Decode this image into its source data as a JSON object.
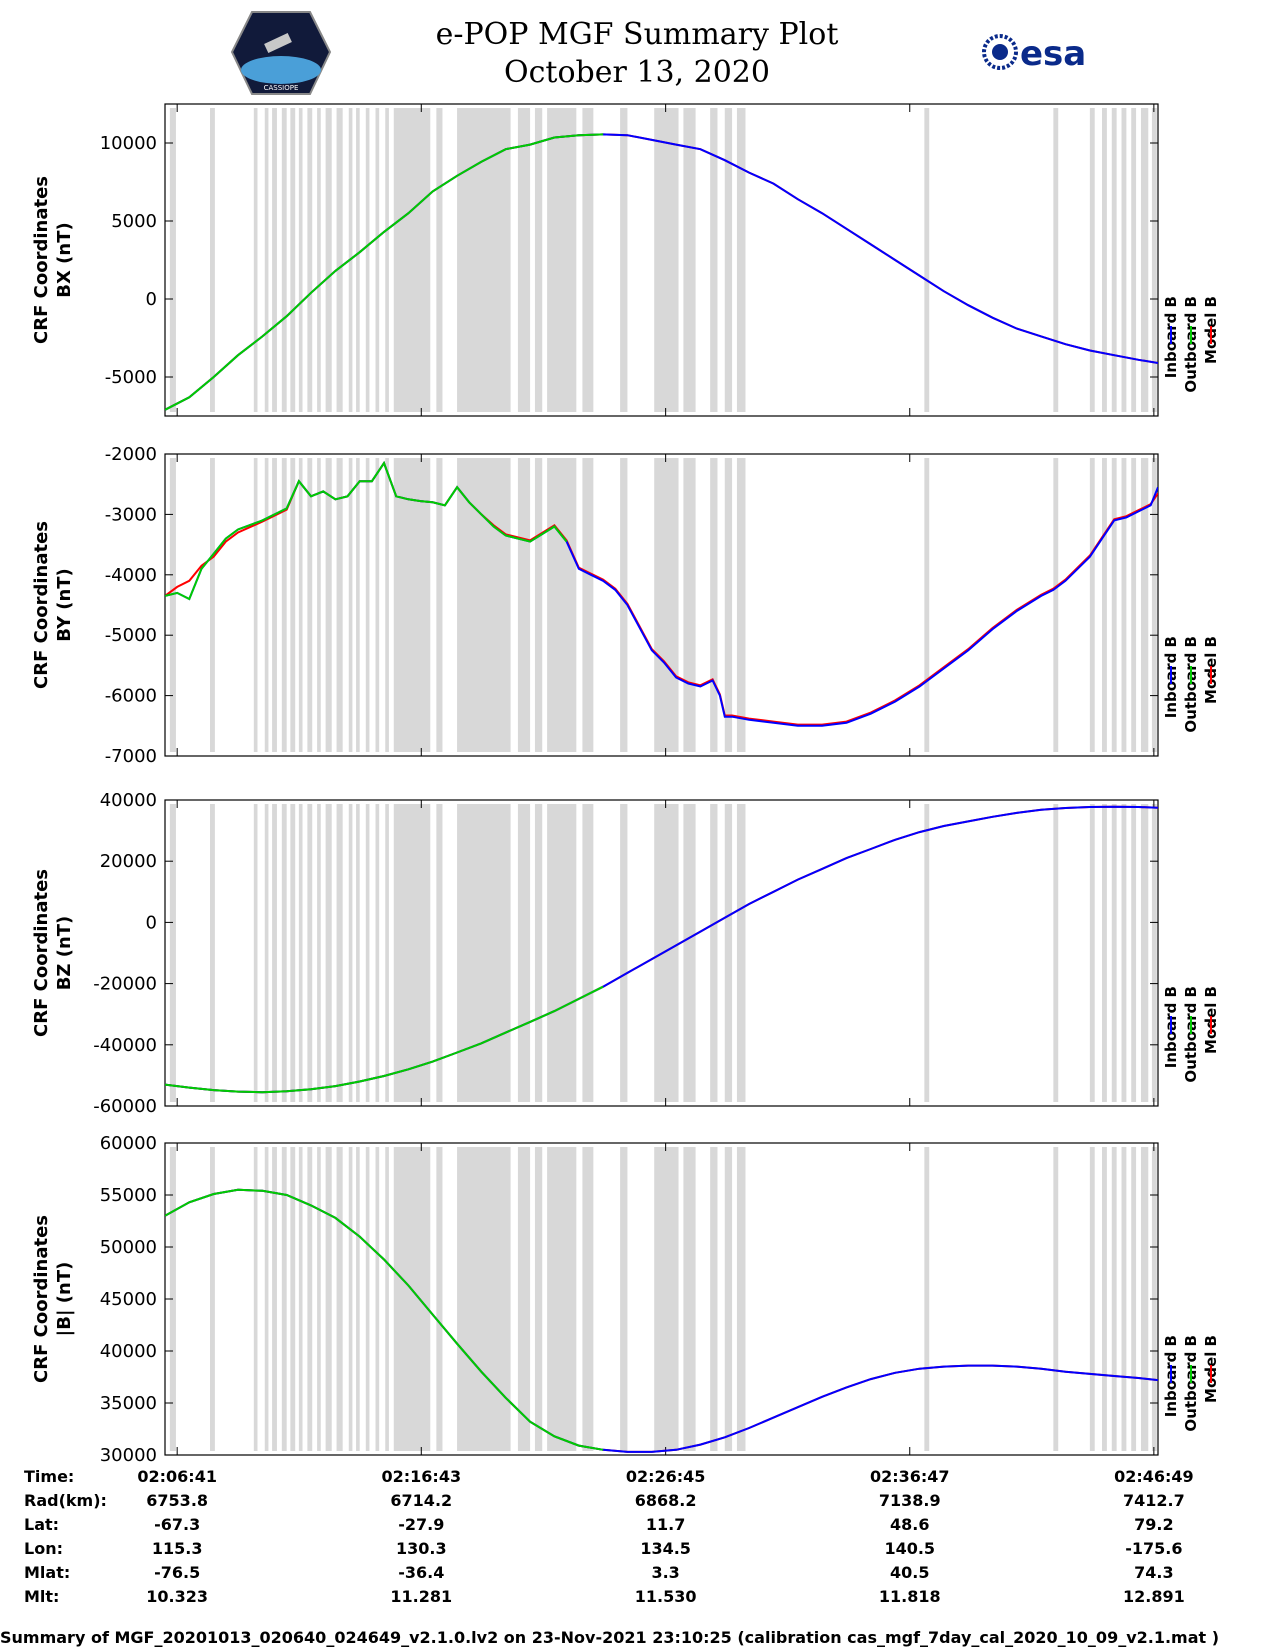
{
  "header": {
    "title_line1": "e-POP MGF Summary Plot",
    "title_line2": "October 13, 2020",
    "logo_left_text": "CASSIOPE",
    "logo_right_text": "esa"
  },
  "colors": {
    "inboard": "#0000ff",
    "outboard": "#00cc00",
    "model": "#ff0000",
    "shade": "#d8d8d8"
  },
  "legend": {
    "labels": [
      "Inboard B",
      "Outboard B",
      "Model B"
    ]
  },
  "x_axis": {
    "tick_labels": [
      "02:06:41",
      "02:16:43",
      "02:26:45",
      "02:36:47",
      "02:46:49"
    ],
    "tick_minutes": [
      0.5,
      10.53,
      20.57,
      30.6,
      40.63
    ],
    "xlim": [
      0,
      40.8
    ]
  },
  "shaded_intervals_min": [
    [
      0.2,
      0.45
    ],
    [
      1.85,
      2.05
    ],
    [
      3.65,
      3.8
    ],
    [
      4.1,
      4.25
    ],
    [
      4.4,
      4.6
    ],
    [
      4.8,
      5.0
    ],
    [
      5.15,
      5.35
    ],
    [
      5.5,
      5.65
    ],
    [
      5.85,
      6.05
    ],
    [
      6.25,
      6.4
    ],
    [
      6.6,
      6.85
    ],
    [
      7.05,
      7.3
    ],
    [
      7.55,
      7.7
    ],
    [
      7.85,
      8.0
    ],
    [
      8.25,
      8.4
    ],
    [
      8.65,
      8.8
    ],
    [
      9.05,
      9.2
    ],
    [
      9.4,
      10.9
    ],
    [
      11.15,
      11.4
    ],
    [
      12.0,
      14.2
    ],
    [
      14.5,
      15.0
    ],
    [
      15.2,
      15.5
    ],
    [
      15.7,
      16.9
    ],
    [
      17.15,
      17.6
    ],
    [
      18.7,
      19.0
    ],
    [
      20.1,
      21.1
    ],
    [
      21.3,
      21.8
    ],
    [
      22.4,
      22.7
    ],
    [
      23.0,
      23.3
    ],
    [
      23.5,
      23.85
    ],
    [
      31.2,
      31.4
    ],
    [
      36.5,
      36.7
    ],
    [
      38.0,
      38.2
    ],
    [
      38.5,
      38.7
    ],
    [
      38.9,
      39.1
    ],
    [
      39.3,
      39.5
    ],
    [
      39.7,
      39.9
    ],
    [
      40.1,
      40.4
    ],
    [
      40.55,
      40.75
    ]
  ],
  "chart_data": [
    {
      "type": "line",
      "name": "BX",
      "ylabel_line1": "CRF Coordinates",
      "ylabel_line2": "BX (nT)",
      "ylim": [
        -7500,
        12500
      ],
      "yticks": [
        10000,
        5000,
        0,
        -5000
      ],
      "ytick_labels": [
        "10000",
        "5000",
        "0",
        "-5000"
      ],
      "x_minutes": [
        0,
        1,
        2,
        3,
        4,
        5,
        6,
        7,
        8,
        9,
        10,
        11,
        12,
        13,
        14,
        15,
        16,
        17,
        18,
        19,
        20,
        21,
        22,
        23,
        24,
        25,
        26,
        27,
        28,
        29,
        30,
        31,
        32,
        33,
        34,
        35,
        36,
        37,
        38,
        39,
        40,
        40.8
      ],
      "outboard_until_minute": 18.8,
      "values": [
        -7100,
        -6300,
        -5000,
        -3600,
        -2400,
        -1100,
        400,
        1800,
        3000,
        4300,
        5500,
        6900,
        7900,
        8800,
        9600,
        9900,
        10350,
        10500,
        10550,
        10500,
        10200,
        9900,
        9600,
        8900,
        8100,
        7400,
        6400,
        5500,
        4500,
        3500,
        2500,
        1500,
        500,
        -400,
        -1200,
        -1900,
        -2400,
        -2900,
        -3300,
        -3600,
        -3900,
        -4100
      ],
      "model_values": [
        -7100,
        -6300,
        -5000,
        -3600,
        -2400,
        -1100,
        400,
        1800,
        3000,
        4300,
        5500,
        6900,
        7900,
        8800,
        9600,
        9900,
        10350,
        10500,
        10550,
        10500,
        10200,
        9900,
        9600,
        8900,
        8100,
        7400,
        6400,
        5500,
        4500,
        3500,
        2500,
        1500,
        500,
        -400,
        -1200,
        -1900,
        -2400,
        -2900,
        -3300,
        -3600,
        -3900,
        -4100
      ]
    },
    {
      "type": "line",
      "name": "BY",
      "ylabel_line1": "CRF Coordinates",
      "ylabel_line2": "BY (nT)",
      "ylim": [
        -7000,
        -2000
      ],
      "yticks": [
        -2000,
        -3000,
        -4000,
        -5000,
        -6000,
        -7000
      ],
      "ytick_labels": [
        "-2000",
        "-3000",
        "-4000",
        "-5000",
        "-6000",
        "-7000"
      ],
      "x_minutes": [
        0,
        0.5,
        1,
        1.5,
        2,
        2.5,
        3,
        4,
        5,
        5.5,
        6,
        6.5,
        7,
        7.5,
        8,
        8.5,
        9,
        9.5,
        10,
        10.5,
        11,
        11.5,
        12,
        12.5,
        13,
        13.5,
        14,
        15,
        16,
        16.5,
        17,
        17.5,
        18,
        18.5,
        19,
        20,
        20.5,
        21,
        21.5,
        22,
        22.5,
        22.8,
        23,
        23.3,
        24,
        25,
        26,
        27,
        28,
        29,
        30,
        31,
        32,
        33,
        34,
        35,
        36,
        36.5,
        37,
        38,
        39,
        39.5,
        40,
        40.5,
        40.8
      ],
      "outboard_until_minute": 16.9,
      "values": [
        -4350,
        -4300,
        -4400,
        -3900,
        -3650,
        -3400,
        -3250,
        -3100,
        -2900,
        -2450,
        -2700,
        -2620,
        -2750,
        -2700,
        -2450,
        -2450,
        -2150,
        -2700,
        -2750,
        -2780,
        -2800,
        -2850,
        -2550,
        -2800,
        -3000,
        -3200,
        -3350,
        -3450,
        -3200,
        -3450,
        -3900,
        -4000,
        -4100,
        -4250,
        -4500,
        -5250,
        -5450,
        -5700,
        -5800,
        -5850,
        -5750,
        -6000,
        -6350,
        -6350,
        -6400,
        -6450,
        -6500,
        -6500,
        -6450,
        -6300,
        -6100,
        -5850,
        -5550,
        -5250,
        -4900,
        -4600,
        -4350,
        -4250,
        -4100,
        -3700,
        -3100,
        -3050,
        -2950,
        -2850,
        -2550
      ],
      "model_values": [
        -4350,
        -4200,
        -4100,
        -3850,
        -3700,
        -3450,
        -3300,
        -3120,
        -2920,
        -2450,
        -2700,
        -2620,
        -2750,
        -2700,
        -2450,
        -2450,
        -2150,
        -2700,
        -2750,
        -2780,
        -2800,
        -2850,
        -2550,
        -2800,
        -3000,
        -3180,
        -3330,
        -3430,
        -3180,
        -3430,
        -3880,
        -3980,
        -4080,
        -4230,
        -4480,
        -5230,
        -5430,
        -5680,
        -5780,
        -5830,
        -5730,
        -5980,
        -6330,
        -6330,
        -6380,
        -6430,
        -6480,
        -6480,
        -6430,
        -6280,
        -6080,
        -5830,
        -5530,
        -5230,
        -4880,
        -4580,
        -4330,
        -4230,
        -4080,
        -3680,
        -3080,
        -3030,
        -2930,
        -2830,
        -2650
      ]
    },
    {
      "type": "line",
      "name": "BZ",
      "ylabel_line1": "CRF Coordinates",
      "ylabel_line2": "BZ (nT)",
      "ylim": [
        -60000,
        40000
      ],
      "yticks": [
        40000,
        20000,
        0,
        -20000,
        -40000,
        -60000
      ],
      "ytick_labels": [
        "40000",
        "20000",
        "0",
        "-20000",
        "-40000",
        "-60000"
      ],
      "x_minutes": [
        0,
        1,
        2,
        3,
        4,
        5,
        6,
        7,
        8,
        9,
        10,
        11,
        12,
        13,
        14,
        15,
        16,
        17,
        18,
        19,
        20,
        21,
        22,
        23,
        24,
        25,
        26,
        27,
        28,
        29,
        30,
        31,
        32,
        33,
        34,
        35,
        36,
        37,
        38,
        39,
        40,
        40.8
      ],
      "outboard_until_minute": 18.8,
      "values": [
        -53000,
        -54000,
        -54800,
        -55300,
        -55500,
        -55200,
        -54500,
        -53500,
        -52000,
        -50200,
        -48000,
        -45500,
        -42500,
        -39500,
        -36000,
        -32500,
        -29000,
        -25000,
        -21000,
        -16500,
        -12000,
        -7500,
        -3000,
        1500,
        6000,
        10000,
        14000,
        17500,
        21000,
        24000,
        27000,
        29500,
        31500,
        33000,
        34500,
        35800,
        36800,
        37400,
        37700,
        37800,
        37700,
        37500
      ],
      "model_values": [
        -53000,
        -54000,
        -54800,
        -55300,
        -55500,
        -55200,
        -54500,
        -53500,
        -52000,
        -50200,
        -48000,
        -45500,
        -42500,
        -39500,
        -36000,
        -32500,
        -29000,
        -25000,
        -21000,
        -16500,
        -12000,
        -7500,
        -3000,
        1500,
        6000,
        10000,
        14000,
        17500,
        21000,
        24000,
        27000,
        29500,
        31500,
        33000,
        34500,
        35800,
        36800,
        37400,
        37700,
        37800,
        37700,
        37500
      ]
    },
    {
      "type": "line",
      "name": "|B|",
      "ylabel_line1": "CRF Coordinates",
      "ylabel_line2": "|B| (nT)",
      "ylim": [
        30000,
        60000
      ],
      "yticks": [
        60000,
        55000,
        50000,
        45000,
        40000,
        35000,
        30000
      ],
      "ytick_labels": [
        "60000",
        "55000",
        "50000",
        "45000",
        "40000",
        "35000",
        "30000"
      ],
      "x_minutes": [
        0,
        1,
        2,
        3,
        4,
        5,
        6,
        7,
        8,
        9,
        10,
        11,
        12,
        13,
        14,
        15,
        16,
        17,
        18,
        19,
        20,
        21,
        22,
        23,
        24,
        25,
        26,
        27,
        28,
        29,
        30,
        31,
        32,
        33,
        34,
        35,
        36,
        37,
        38,
        39,
        40,
        40.8
      ],
      "outboard_until_minute": 18.8,
      "values": [
        53000,
        54300,
        55100,
        55500,
        55400,
        55000,
        54000,
        52800,
        51000,
        48800,
        46300,
        43500,
        40700,
        38000,
        35500,
        33200,
        31800,
        30900,
        30500,
        30300,
        30300,
        30500,
        31000,
        31700,
        32600,
        33600,
        34600,
        35600,
        36500,
        37300,
        37900,
        38300,
        38500,
        38600,
        38600,
        38500,
        38300,
        38000,
        37800,
        37600,
        37400,
        37200
      ],
      "model_values": [
        53000,
        54300,
        55100,
        55500,
        55400,
        55000,
        54000,
        52800,
        51000,
        48800,
        46300,
        43500,
        40700,
        38000,
        35500,
        33200,
        31800,
        30900,
        30500,
        30300,
        30300,
        30500,
        31000,
        31700,
        32600,
        33600,
        34600,
        35600,
        36500,
        37300,
        37900,
        38300,
        38500,
        38600,
        38600,
        38500,
        38300,
        38000,
        37800,
        37600,
        37400,
        37200
      ]
    }
  ],
  "orbit_table": {
    "row_labels": [
      "Time:",
      "Rad(km):",
      "Lat:",
      "Lon:",
      "Mlat:",
      "Mlt:"
    ],
    "columns": [
      [
        "02:06:41",
        "6753.8",
        "-67.3",
        "115.3",
        "-76.5",
        "10.323"
      ],
      [
        "02:16:43",
        "6714.2",
        "-27.9",
        "130.3",
        "-36.4",
        "11.281"
      ],
      [
        "02:26:45",
        "6868.2",
        "11.7",
        "134.5",
        "3.3",
        "11.530"
      ],
      [
        "02:36:47",
        "7138.9",
        "48.6",
        "140.5",
        "40.5",
        "11.818"
      ],
      [
        "02:46:49",
        "7412.7",
        "79.2",
        "-175.6",
        "74.3",
        "12.891"
      ]
    ]
  },
  "footer": {
    "text": "Summary of MGF_20201013_020640_024649_v2.1.0.lv2 on 23-Nov-2021 23:10:25 (calibration cas_mgf_7day_cal_2020_10_09_v2.1.mat )"
  }
}
